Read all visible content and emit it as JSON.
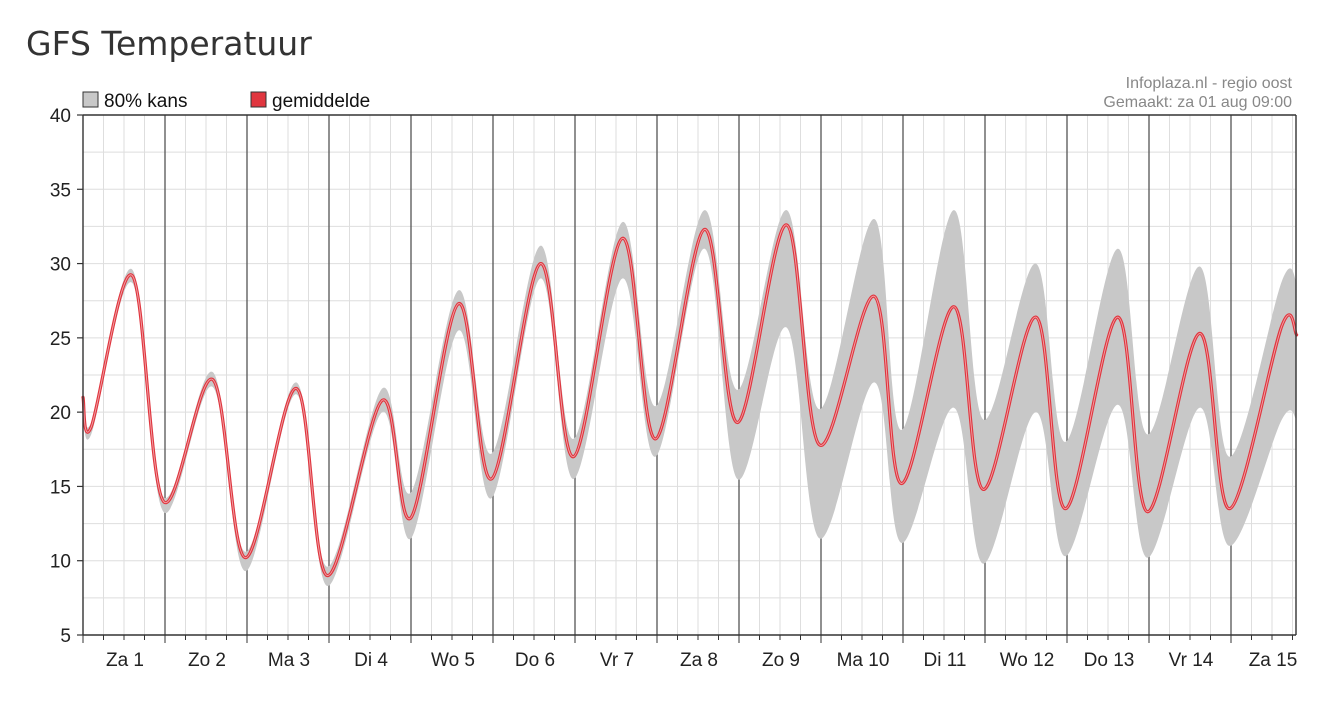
{
  "page": {
    "title": "GFS Temperatuur"
  },
  "source": {
    "line1": "Infoplaza.nl - regio oost",
    "line2": "Gemaakt: za 01 aug 09:00"
  },
  "legend": {
    "band_label": "80% kans",
    "mean_label": "gemiddelde",
    "band_color": "#c8c8c8",
    "mean_color": "#e0363f"
  },
  "chart_data": {
    "type": "line",
    "title": "",
    "xlabel": "",
    "ylabel": "",
    "ylim": [
      5,
      40
    ],
    "yticks": [
      5,
      10,
      15,
      20,
      25,
      30,
      35,
      40
    ],
    "y_tick_labels": [
      "5",
      "10",
      "15",
      "20",
      "25",
      "30",
      "35",
      "40"
    ],
    "day_labels": [
      "Za 1",
      "Zo 2",
      "Ma 3",
      "Di 4",
      "Wo 5",
      "Do 6",
      "Vr 7",
      "Za 8",
      "Zo 9",
      "Ma 10",
      "Di 11",
      "Wo 12",
      "Do 13",
      "Vr 14",
      "Za 15"
    ],
    "grid": true,
    "legend_position": "top-left",
    "series": [
      {
        "name": "gemiddelde",
        "kind": "line",
        "x": [
          0,
          0.1,
          0.6,
          0.98,
          1.58,
          1.98,
          2.6,
          2.98,
          3.65,
          4.0,
          4.58,
          4.98,
          5.58,
          5.98,
          6.58,
          6.98,
          7.58,
          7.98,
          8.58,
          8.98,
          9.65,
          9.98,
          10.62,
          10.98,
          11.62,
          11.98,
          12.62,
          12.98,
          13.62,
          13.98,
          14.62,
          14.8
        ],
        "values": [
          21,
          19,
          29.2,
          14,
          22.2,
          10.2,
          21.6,
          9,
          20.8,
          12.9,
          27.3,
          15.5,
          30,
          17,
          31.7,
          18.2,
          32.3,
          19.3,
          32.6,
          17.8,
          27.8,
          15.2,
          27.1,
          14.8,
          26.4,
          13.5,
          26.4,
          13.3,
          25.3,
          13.5,
          25.8,
          25.2
        ]
      },
      {
        "name": "80% kans",
        "kind": "band",
        "x": [
          0,
          0.1,
          0.6,
          0.98,
          1.58,
          1.98,
          2.6,
          2.98,
          3.65,
          4.0,
          4.58,
          4.98,
          5.58,
          5.98,
          6.58,
          6.98,
          7.58,
          7.98,
          8.58,
          8.98,
          9.65,
          9.98,
          10.62,
          10.98,
          11.62,
          11.98,
          12.62,
          12.98,
          13.62,
          13.98,
          14.62,
          14.8
        ],
        "lower": [
          20.5,
          18.5,
          28.7,
          13.3,
          21.7,
          9.3,
          21.2,
          8.3,
          20,
          11.5,
          25.5,
          14.2,
          29,
          15.5,
          29,
          17,
          31,
          15.5,
          25.7,
          11.5,
          22,
          11.2,
          20.3,
          9.8,
          20,
          10.3,
          20.5,
          10.2,
          20.3,
          11,
          19.5,
          19.5
        ],
        "upper": [
          21.5,
          19.3,
          29.6,
          14.3,
          22.7,
          10.6,
          22,
          9.6,
          21.6,
          14.6,
          28.2,
          17.2,
          31.2,
          18.2,
          32.8,
          20.4,
          33.6,
          21.5,
          33.6,
          20.2,
          33,
          18.8,
          33.6,
          19.5,
          30,
          18,
          31,
          18.5,
          29.8,
          17,
          28.8,
          28.8
        ]
      }
    ]
  }
}
